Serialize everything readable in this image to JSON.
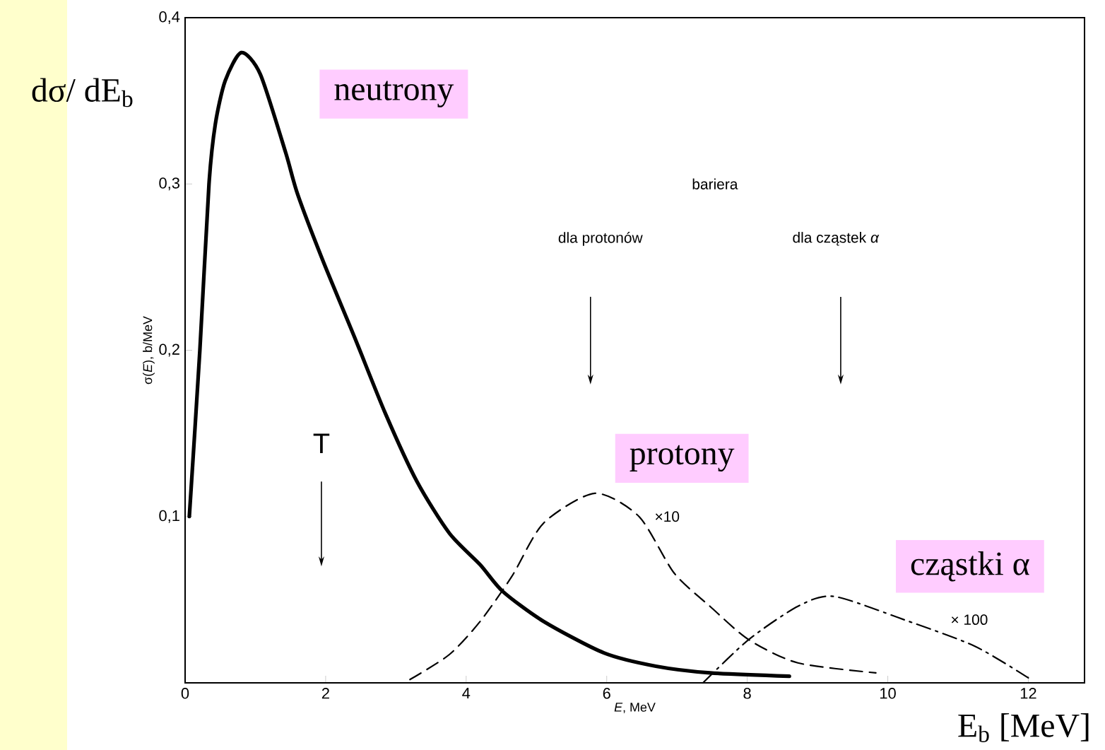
{
  "chart_data": {
    "type": "line",
    "xlabel": "*E*, MeV",
    "ylabel": "σ(*E*), b/MeV",
    "xlim": [
      0,
      12.8
    ],
    "ylim": [
      0,
      0.4
    ],
    "xticks": [
      0,
      2,
      4,
      6,
      8,
      10,
      12
    ],
    "yticks": [
      {
        "value": 0,
        "label": null
      },
      {
        "value": 0.1,
        "label": "0,1"
      },
      {
        "value": 0.2,
        "label": "0,2"
      },
      {
        "value": 0.3,
        "label": "0,3"
      },
      {
        "value": 0.4,
        "label": "0,4"
      }
    ],
    "grid": false,
    "marker": "none",
    "series": [
      {
        "name": "neutrony",
        "color": "#000000",
        "line_style": "solid",
        "x": [
          0.06,
          0.21,
          0.34,
          0.43,
          0.57,
          0.8,
          1.07,
          1.43,
          1.6,
          1.96,
          2.41,
          2.85,
          3.3,
          3.76,
          4.2,
          4.52,
          5.1,
          5.96,
          6.7,
          7.47,
          8.6
        ],
        "values": [
          0.1,
          0.2,
          0.3,
          0.336,
          0.362,
          0.379,
          0.366,
          0.319,
          0.294,
          0.254,
          0.208,
          0.162,
          0.121,
          0.09,
          0.071,
          0.055,
          0.037,
          0.018,
          0.01,
          0.006,
          0.004
        ]
      },
      {
        "name": "protony",
        "color": "#000000",
        "line_style": "dashed",
        "x": [
          3.2,
          3.76,
          4.2,
          4.65,
          5.1,
          5.83,
          6.46,
          6.96,
          7.47,
          8.02,
          8.72,
          9.83
        ],
        "values": [
          0.002,
          0.017,
          0.037,
          0.064,
          0.096,
          0.114,
          0.1,
          0.066,
          0.046,
          0.026,
          0.012,
          0.006
        ]
      },
      {
        "name": "cząstki α",
        "color": "#000000",
        "line_style": "dashdot",
        "x": [
          7.37,
          8.02,
          8.72,
          9.23,
          10.23,
          11.24,
          12.0
        ],
        "values": [
          0.0,
          0.026,
          0.046,
          0.052,
          0.038,
          0.022,
          0.003
        ]
      }
    ],
    "annotations": [
      "bariera",
      "dla protonów",
      "dla cząstek *α*",
      "T",
      "×10",
      "× 100",
      "dσ/ dE$_{b}$",
      "E$_{b}$ [MeV]"
    ]
  }
}
